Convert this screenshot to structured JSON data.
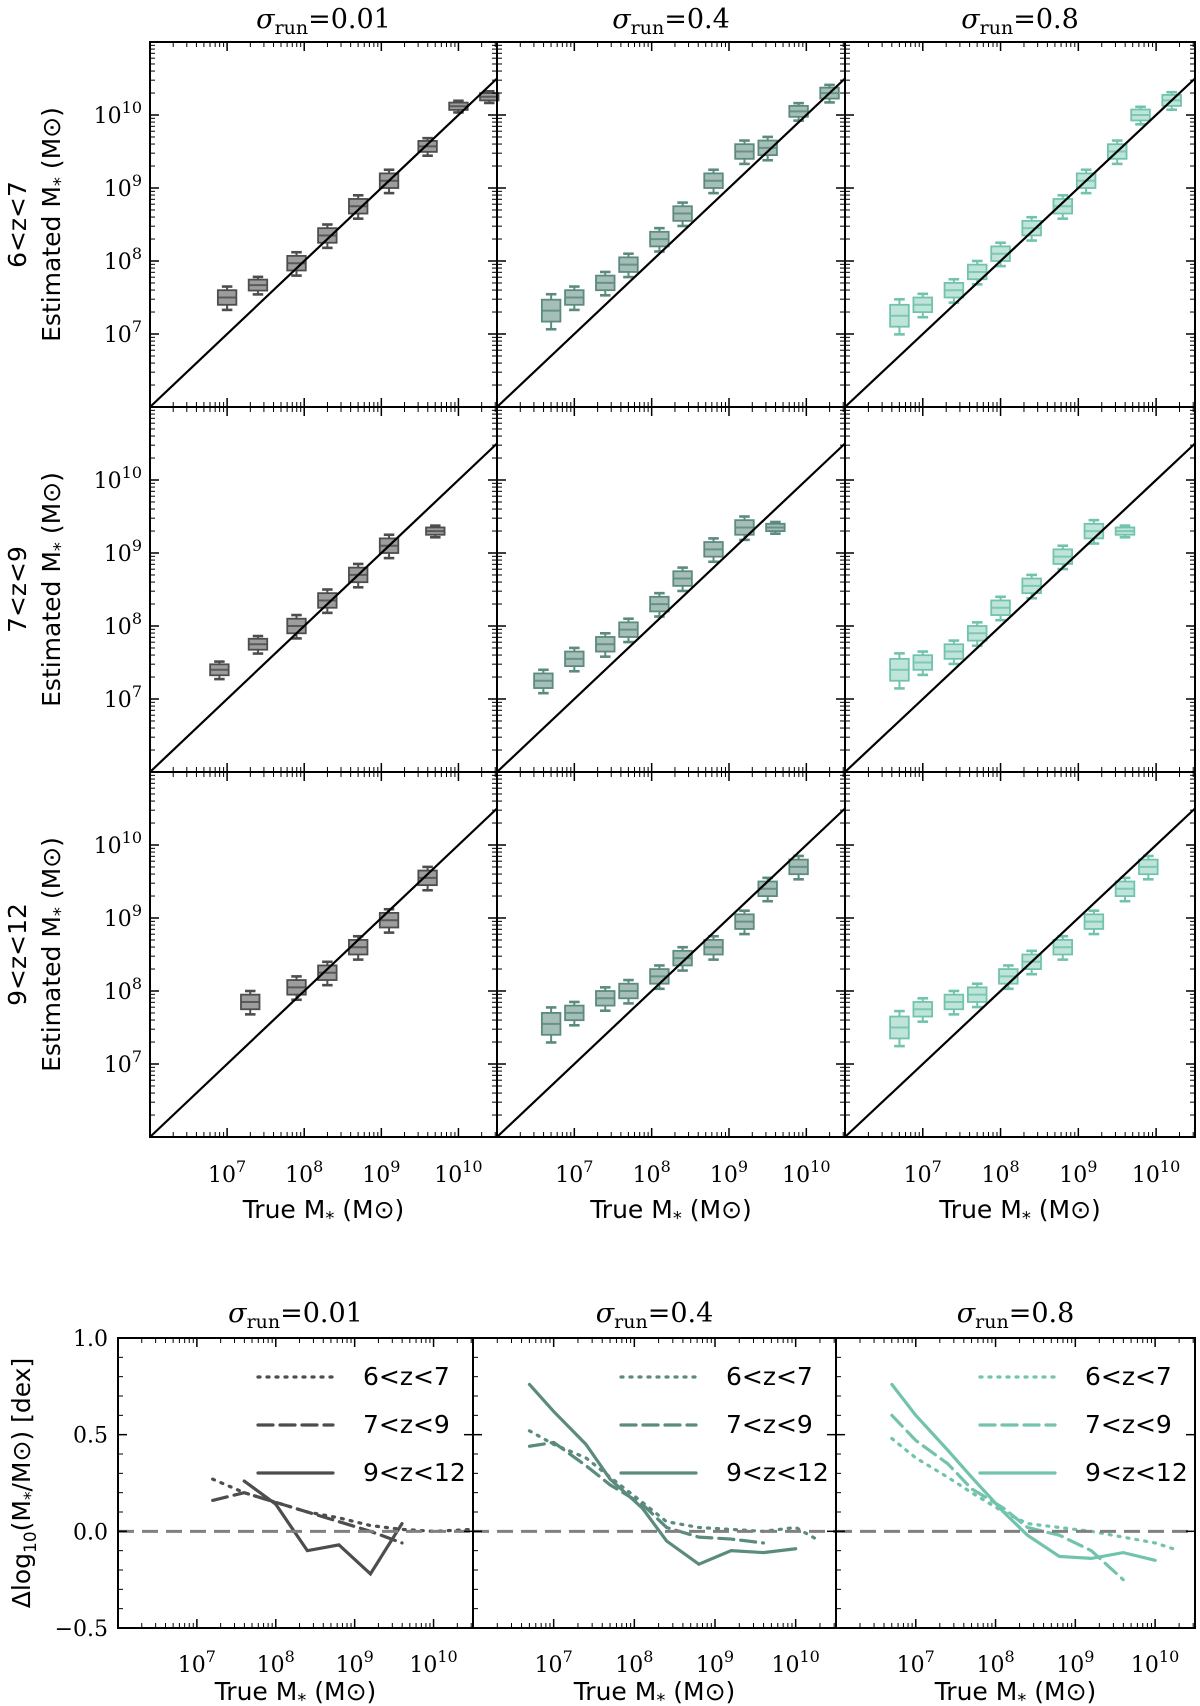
{
  "colors": {
    "dark": "#4d4d4d",
    "mid": "#5b8a7e",
    "light": "#72c3ad",
    "diag": "#000000",
    "zero": "#808080"
  },
  "col_titles": [
    "σrun=0.01",
    "σrun=0.4",
    "σrun=0.8"
  ],
  "row_labels": [
    "6<z<7",
    "7<z<9",
    "9<z<12"
  ],
  "y_label": "Estimated M* (M⊙)",
  "x_label": "True M* (M⊙)",
  "bottom_y_label": "Δlog10(M*/M⊙) [dex]",
  "chart_data": [
    {
      "type": "box",
      "panels": "3x3 grid: rows = redshift bins, columns = σrun",
      "x_scale": "log",
      "y_scale": "log",
      "xlim": [
        1000000.0,
        30000000000.0
      ],
      "ylim": [
        1000000.0,
        100000000000.0
      ],
      "x_ticks": [
        "10^7",
        "10^8",
        "10^9",
        "10^10"
      ],
      "y_ticks": [
        "10^7",
        "10^8",
        "10^9",
        "10^10"
      ],
      "reference_line": "y = x",
      "grid": [
        [
          {
            "row": "6<z<7",
            "col": "σrun=0.01",
            "x": [
              7.0,
              7.4,
              7.9,
              8.3,
              8.7,
              9.1,
              9.6,
              10.0,
              10.4
            ],
            "med": [
              7.5,
              7.67,
              7.97,
              8.35,
              8.75,
              9.1,
              9.57,
              10.12,
              10.25
            ],
            "w": [
              0.2,
              0.15,
              0.2,
              0.2,
              0.2,
              0.2,
              0.15,
              0.1,
              0.1
            ]
          },
          {
            "row": "6<z<7",
            "col": "σrun=0.4",
            "x": [
              6.7,
              7.0,
              7.4,
              7.7,
              8.1,
              8.4,
              8.8,
              9.2,
              9.5,
              9.9,
              10.3
            ],
            "med": [
              7.32,
              7.5,
              7.7,
              7.95,
              8.3,
              8.65,
              9.1,
              9.5,
              9.55,
              10.05,
              10.3
            ],
            "w": [
              0.3,
              0.2,
              0.2,
              0.2,
              0.2,
              0.2,
              0.2,
              0.2,
              0.2,
              0.15,
              0.15
            ]
          },
          {
            "row": "6<z<7",
            "col": "σrun=0.8",
            "x": [
              6.7,
              7.0,
              7.4,
              7.7,
              8.0,
              8.4,
              8.8,
              9.1,
              9.5,
              9.8,
              10.2
            ],
            "med": [
              7.25,
              7.4,
              7.6,
              7.85,
              8.1,
              8.45,
              8.75,
              9.1,
              9.5,
              10.0,
              10.2
            ],
            "w": [
              0.3,
              0.2,
              0.2,
              0.2,
              0.2,
              0.2,
              0.2,
              0.2,
              0.2,
              0.15,
              0.15
            ]
          }
        ],
        [
          {
            "row": "7<z<9",
            "col": "σrun=0.01",
            "x": [
              6.9,
              7.4,
              7.9,
              8.3,
              8.7,
              9.1,
              9.7
            ],
            "med": [
              7.4,
              7.75,
              8.0,
              8.35,
              8.7,
              9.1,
              9.3
            ],
            "w": [
              0.15,
              0.15,
              0.2,
              0.2,
              0.2,
              0.2,
              0.1
            ]
          },
          {
            "row": "7<z<9",
            "col": "σrun=0.4",
            "x": [
              6.6,
              7.0,
              7.4,
              7.7,
              8.1,
              8.4,
              8.8,
              9.2,
              9.6
            ],
            "med": [
              7.25,
              7.55,
              7.75,
              7.95,
              8.3,
              8.65,
              9.05,
              9.35,
              9.35
            ],
            "w": [
              0.2,
              0.2,
              0.2,
              0.2,
              0.2,
              0.2,
              0.2,
              0.2,
              0.1
            ]
          },
          {
            "row": "7<z<9",
            "col": "σrun=0.8",
            "x": [
              6.7,
              7.0,
              7.4,
              7.7,
              8.0,
              8.4,
              8.8,
              9.2,
              9.6
            ],
            "med": [
              7.4,
              7.5,
              7.65,
              7.9,
              8.25,
              8.55,
              8.95,
              9.3,
              9.3
            ],
            "w": [
              0.3,
              0.2,
              0.2,
              0.2,
              0.2,
              0.2,
              0.2,
              0.2,
              0.1
            ]
          }
        ],
        [
          {
            "row": "9<z<12",
            "col": "σrun=0.01",
            "x": [
              7.3,
              7.9,
              8.3,
              8.7,
              9.1,
              9.6
            ],
            "med": [
              7.85,
              8.05,
              8.25,
              8.6,
              8.97,
              9.55
            ],
            "w": [
              0.2,
              0.2,
              0.2,
              0.2,
              0.2,
              0.2
            ]
          },
          {
            "row": "9<z<12",
            "col": "σrun=0.4",
            "x": [
              6.7,
              7.0,
              7.4,
              7.7,
              8.1,
              8.4,
              8.8,
              9.2,
              9.5,
              9.9
            ],
            "med": [
              7.55,
              7.7,
              7.9,
              8.0,
              8.2,
              8.45,
              8.6,
              8.95,
              9.4,
              9.7
            ],
            "w": [
              0.3,
              0.2,
              0.2,
              0.2,
              0.2,
              0.2,
              0.2,
              0.2,
              0.2,
              0.2
            ]
          },
          {
            "row": "9<z<12",
            "col": "σrun=0.8",
            "x": [
              6.7,
              7.0,
              7.4,
              7.7,
              8.1,
              8.4,
              8.8,
              9.2,
              9.6,
              9.9
            ],
            "med": [
              7.5,
              7.75,
              7.85,
              7.95,
              8.2,
              8.4,
              8.6,
              8.95,
              9.4,
              9.7
            ],
            "w": [
              0.3,
              0.2,
              0.2,
              0.2,
              0.2,
              0.2,
              0.2,
              0.2,
              0.2,
              0.2
            ]
          }
        ]
      ]
    },
    {
      "type": "line",
      "panels": "1x3 row: columns = σrun",
      "x_scale": "log",
      "xlim": [
        1000000.0,
        30000000000.0
      ],
      "ylim": [
        -0.5,
        1.0
      ],
      "x_ticks": [
        "10^7",
        "10^8",
        "10^9",
        "10^10"
      ],
      "y_ticks": [
        "−0.5",
        "0.0",
        "0.5",
        "1.0"
      ],
      "reference_line": "y = 0 (dashed)",
      "legend": "upper right",
      "panels_data": [
        {
          "col": "σrun=0.01",
          "series": [
            {
              "name": "6<z<7",
              "style": "dotted",
              "x": [
                7.2,
                7.6,
                8.0,
                8.4,
                8.8,
                9.2,
                9.6,
                10.0,
                10.5
              ],
              "y": [
                0.27,
                0.2,
                0.15,
                0.1,
                0.07,
                0.03,
                0.01,
                0.0,
                0.01
              ]
            },
            {
              "name": "7<z<9",
              "style": "dashed",
              "x": [
                7.2,
                7.6,
                8.0,
                8.4,
                8.8,
                9.2,
                9.6
              ],
              "y": [
                0.16,
                0.2,
                0.15,
                0.1,
                0.05,
                0.0,
                -0.06
              ]
            },
            {
              "name": "9<z<12",
              "style": "solid",
              "x": [
                7.6,
                8.0,
                8.4,
                8.8,
                9.2,
                9.6
              ],
              "y": [
                0.26,
                0.14,
                -0.1,
                -0.07,
                -0.22,
                0.04
              ]
            }
          ]
        },
        {
          "col": "σrun=0.4",
          "series": [
            {
              "name": "6<z<7",
              "style": "dotted",
              "x": [
                6.7,
                7.0,
                7.4,
                7.7,
                8.1,
                8.4,
                8.8,
                9.2,
                9.6,
                10.0,
                10.3
              ],
              "y": [
                0.52,
                0.45,
                0.38,
                0.28,
                0.15,
                0.05,
                0.02,
                0.01,
                0.0,
                0.02,
                -0.05
              ]
            },
            {
              "name": "7<z<9",
              "style": "dashed",
              "x": [
                6.7,
                7.0,
                7.4,
                7.7,
                8.1,
                8.4,
                8.8,
                9.2,
                9.6
              ],
              "y": [
                0.44,
                0.46,
                0.34,
                0.24,
                0.14,
                0.02,
                -0.03,
                -0.04,
                -0.06
              ]
            },
            {
              "name": "9<z<12",
              "style": "solid",
              "x": [
                6.7,
                7.0,
                7.4,
                7.7,
                8.1,
                8.4,
                8.8,
                9.2,
                9.6,
                10.0
              ],
              "y": [
                0.76,
                0.62,
                0.45,
                0.27,
                0.12,
                -0.05,
                -0.17,
                -0.1,
                -0.11,
                -0.09
              ]
            }
          ]
        },
        {
          "col": "σrun=0.8",
          "series": [
            {
              "name": "6<z<7",
              "style": "dotted",
              "x": [
                6.7,
                7.0,
                7.4,
                7.7,
                8.1,
                8.4,
                8.8,
                9.2,
                9.6,
                10.0,
                10.3
              ],
              "y": [
                0.48,
                0.38,
                0.28,
                0.2,
                0.1,
                0.04,
                0.02,
                0.0,
                -0.03,
                -0.06,
                -0.1
              ]
            },
            {
              "name": "7<z<9",
              "style": "dashed",
              "x": [
                6.7,
                7.0,
                7.4,
                7.7,
                8.1,
                8.4,
                8.8,
                9.2,
                9.6
              ],
              "y": [
                0.6,
                0.47,
                0.35,
                0.22,
                0.12,
                0.02,
                -0.02,
                -0.1,
                -0.25
              ]
            },
            {
              "name": "9<z<12",
              "style": "solid",
              "x": [
                6.7,
                7.0,
                7.4,
                7.7,
                8.1,
                8.4,
                8.8,
                9.2,
                9.6,
                10.0
              ],
              "y": [
                0.76,
                0.6,
                0.42,
                0.28,
                0.1,
                -0.02,
                -0.13,
                -0.14,
                -0.11,
                -0.15
              ]
            }
          ]
        }
      ]
    }
  ]
}
